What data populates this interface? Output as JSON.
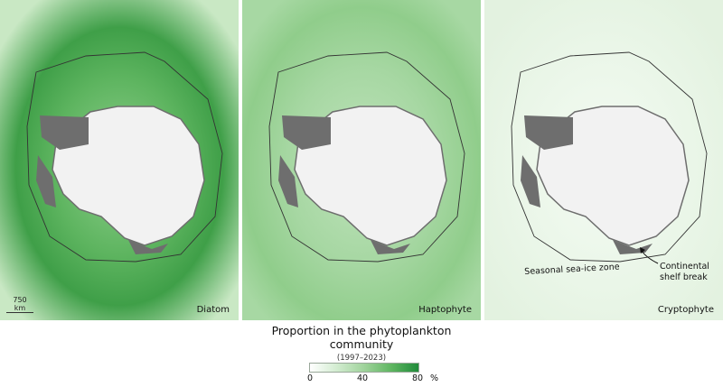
{
  "panels": [
    {
      "label": "Diatom",
      "field_color": "#6cbf6d",
      "ring_color": "#3a9c47"
    },
    {
      "label": "Haptophyte",
      "field_color": "#a8d8a4",
      "ring_color": "#8ccb87"
    },
    {
      "label": "Cryptophyte",
      "field_color": "#eef8ec",
      "ring_color": "#e6f4e3"
    }
  ],
  "scale_bar": "750 km",
  "annotations": {
    "seaice_zone": "Seasonal sea-ice zone",
    "shelf_break_line1": "Continental",
    "shelf_break_line2": "shelf break"
  },
  "legend": {
    "title_line1": "Proportion in the phytoplankton",
    "title_line2": "community",
    "period": "(1997–2023)",
    "ticks": [
      "0",
      "40",
      "80"
    ],
    "unit": "%",
    "colors": [
      "#ffffff",
      "#d2ecd0",
      "#9fd39b",
      "#5fb661",
      "#208b3a"
    ]
  },
  "colors": {
    "land_ice": "#f2f2f2",
    "ice_shelf": "#6e6e6e",
    "contour": "#333333"
  }
}
